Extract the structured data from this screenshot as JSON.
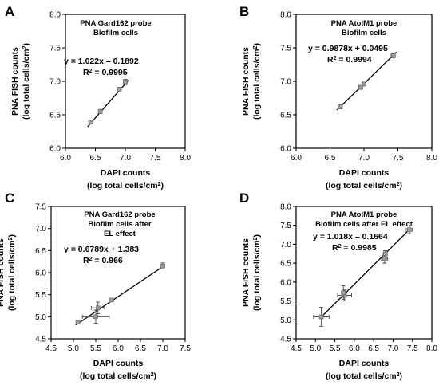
{
  "chart_data": [
    {
      "type": "scatter",
      "panel": "A",
      "annotation": [
        "PNA Gard162 probe",
        "Biofilm cells"
      ],
      "equation": "y = 1.022x – 0.1892",
      "r2_prefix": "R",
      "r2_suffix": " = 0.9995",
      "xlabel": [
        "DAPI counts",
        "(log total cells/cm",
        ")"
      ],
      "ylabel": [
        "PNA FISH counts",
        "(log total cells/cm",
        ")"
      ],
      "xlim": [
        6.0,
        8.0
      ],
      "ylim": [
        6.0,
        8.0
      ],
      "xticks": [
        "6.0",
        "6.5",
        "7.0",
        "7.5",
        "8.0"
      ],
      "yticks": [
        "6.0",
        "6.5",
        "7.0",
        "7.5",
        "8.0"
      ],
      "slope": 1.022,
      "intercept": -0.1892,
      "points": [
        {
          "x": 6.42,
          "y": 6.39,
          "xerr": 0.02,
          "yerr": 0.02
        },
        {
          "x": 6.58,
          "y": 6.55,
          "xerr": 0.03,
          "yerr": 0.03
        },
        {
          "x": 6.9,
          "y": 6.88,
          "xerr": 0.03,
          "yerr": 0.03
        },
        {
          "x": 7.0,
          "y": 6.99,
          "xerr": 0.03,
          "yerr": 0.04
        }
      ]
    },
    {
      "type": "scatter",
      "panel": "B",
      "annotation": [
        "PNA AtoIM1 probe",
        "Biofilm cells"
      ],
      "equation": "y = 0.9878x + 0.0495",
      "r2_prefix": "R",
      "r2_suffix": " = 0.9994",
      "xlabel": [
        "DAPI counts",
        "(log total cells/cm",
        ")"
      ],
      "ylabel": [
        "PNA FISH counts",
        "(log total cells/cm",
        ")"
      ],
      "xlim": [
        6.0,
        8.0
      ],
      "ylim": [
        6.0,
        8.0
      ],
      "xticks": [
        "6.0",
        "6.5",
        "7.0",
        "7.5",
        "8.0"
      ],
      "yticks": [
        "6.0",
        "6.5",
        "7.0",
        "7.5",
        "8.0"
      ],
      "slope": 0.9878,
      "intercept": 0.0495,
      "points": [
        {
          "x": 6.65,
          "y": 6.62,
          "xerr": 0.03,
          "yerr": 0.03
        },
        {
          "x": 6.95,
          "y": 6.91,
          "xerr": 0.03,
          "yerr": 0.03
        },
        {
          "x": 7.0,
          "y": 6.96,
          "xerr": 0.03,
          "yerr": 0.03
        },
        {
          "x": 7.43,
          "y": 7.38,
          "xerr": 0.03,
          "yerr": 0.03
        }
      ]
    },
    {
      "type": "scatter",
      "panel": "C",
      "annotation": [
        "PNA Gard162 probe",
        "Biofilm cells after",
        "EL effect"
      ],
      "equation": "y = 0.6789x + 1.383",
      "r2_prefix": "R",
      "r2_suffix": " = 0.966",
      "xlabel": [
        "DAPI counts",
        "(log total cells/cm",
        ")"
      ],
      "ylabel": [
        "PNA FISH counts",
        "(log total cells/cm",
        ")"
      ],
      "xlim": [
        4.5,
        7.5
      ],
      "ylim": [
        4.5,
        7.5
      ],
      "xticks": [
        "4.5",
        "5.0",
        "5.5",
        "6.0",
        "6.5",
        "7.0",
        "7.5"
      ],
      "yticks": [
        "4.5",
        "5.0",
        "5.5",
        "6.0",
        "6.5",
        "7.0",
        "7.5"
      ],
      "slope": 0.6789,
      "intercept": 1.383,
      "points": [
        {
          "x": 5.1,
          "y": 4.88,
          "xerr": 0.02,
          "yerr": 0.02
        },
        {
          "x": 5.5,
          "y": 5.0,
          "xerr": 0.3,
          "yerr": 0.15
        },
        {
          "x": 5.55,
          "y": 5.2,
          "xerr": 0.15,
          "yerr": 0.13
        },
        {
          "x": 5.85,
          "y": 5.38,
          "xerr": 0.02,
          "yerr": 0.02
        },
        {
          "x": 7.0,
          "y": 6.15,
          "xerr": 0.03,
          "yerr": 0.07
        }
      ]
    },
    {
      "type": "scatter",
      "panel": "D",
      "annotation": [
        "PNA AtoIM1 probe",
        "Biofilm cells after EL effect"
      ],
      "equation": "y = 1.018x – 0.1664",
      "r2_prefix": "R",
      "r2_suffix": " = 0.9985",
      "xlabel": [
        "DAPI counts",
        "(log total cells/cm",
        ")"
      ],
      "ylabel": [
        "PNA FISH counts",
        "(log total cells/cm",
        ")"
      ],
      "xlim": [
        4.5,
        8.0
      ],
      "ylim": [
        4.5,
        8.0
      ],
      "xticks": [
        "4.5",
        "5.0",
        "5.5",
        "6.0",
        "6.5",
        "7.0",
        "7.5",
        "8.0"
      ],
      "yticks": [
        "4.5",
        "5.0",
        "5.5",
        "6.0",
        "6.5",
        "7.0",
        "7.5",
        "8.0"
      ],
      "slope": 1.018,
      "intercept": -0.1664,
      "points": [
        {
          "x": 5.15,
          "y": 5.08,
          "xerr": 0.2,
          "yerr": 0.25
        },
        {
          "x": 5.75,
          "y": 5.65,
          "xerr": 0.18,
          "yerr": 0.15
        },
        {
          "x": 5.72,
          "y": 5.72,
          "xerr": 0.05,
          "yerr": 0.18
        },
        {
          "x": 6.78,
          "y": 6.62,
          "xerr": 0.08,
          "yerr": 0.12
        },
        {
          "x": 6.8,
          "y": 6.75,
          "xerr": 0.05,
          "yerr": 0.08
        },
        {
          "x": 7.42,
          "y": 7.38,
          "xerr": 0.08,
          "yerr": 0.1
        }
      ]
    }
  ]
}
